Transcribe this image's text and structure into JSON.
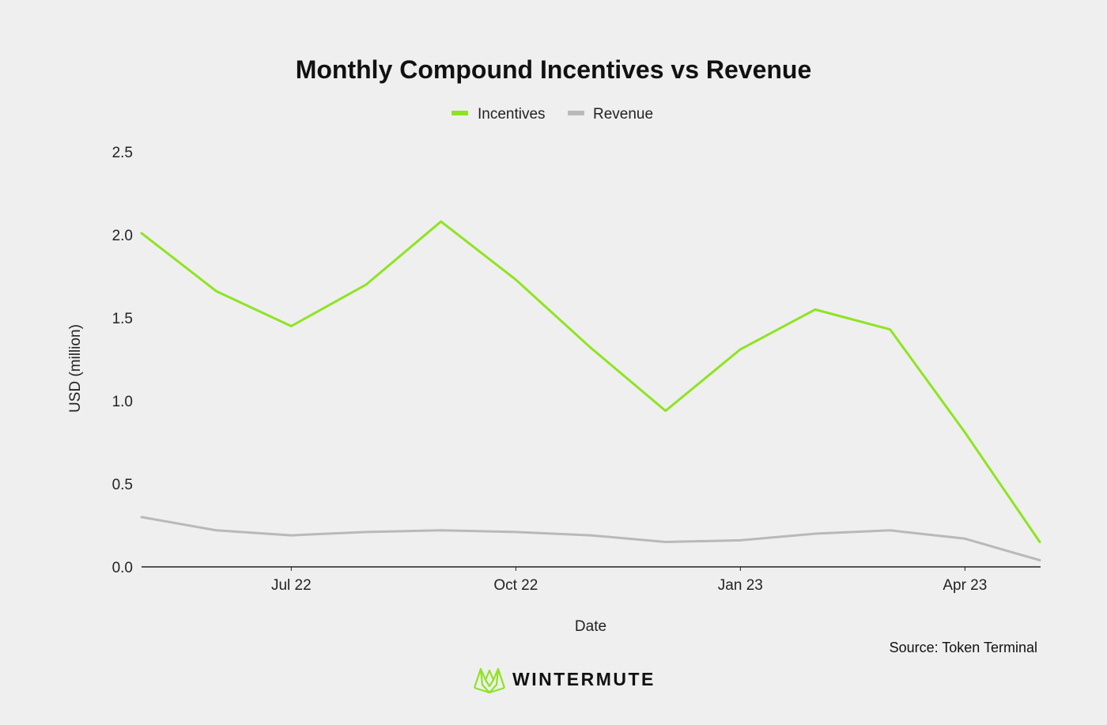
{
  "chart_data": {
    "type": "line",
    "title": "Monthly Compound Incentives vs Revenue",
    "xlabel": "Date",
    "ylabel": "USD (million)",
    "ylim": [
      0,
      2.5
    ],
    "yticks": [
      "0.0",
      "0.5",
      "1.0",
      "1.5",
      "2.0",
      "2.5"
    ],
    "x": [
      "2022-05",
      "2022-06",
      "2022-07",
      "2022-08",
      "2022-09",
      "2022-10",
      "2022-11",
      "2022-12",
      "2023-01",
      "2023-02",
      "2023-03",
      "2023-04",
      "2023-05"
    ],
    "xticks": [
      {
        "label": "Jul 22",
        "at": "2022-07"
      },
      {
        "label": "Oct 22",
        "at": "2022-10"
      },
      {
        "label": "Jan 23",
        "at": "2023-01"
      },
      {
        "label": "Apr 23",
        "at": "2023-04"
      }
    ],
    "series": [
      {
        "name": "Incentives",
        "color": "#8ee422",
        "values": [
          2.01,
          1.66,
          1.45,
          1.7,
          2.08,
          1.73,
          1.32,
          0.94,
          1.31,
          1.55,
          1.43,
          0.81,
          0.15
        ]
      },
      {
        "name": "Revenue",
        "color": "#b9b9b9",
        "values": [
          0.3,
          0.22,
          0.19,
          0.21,
          0.22,
          0.21,
          0.19,
          0.15,
          0.16,
          0.2,
          0.22,
          0.17,
          0.04
        ]
      }
    ],
    "legend_position": "top-center",
    "grid": false
  },
  "source": "Source: Token Terminal",
  "brand": {
    "name": "WINTERMUTE",
    "logo_color": "#8ee422",
    "icon": "wintermute-logo-icon"
  }
}
